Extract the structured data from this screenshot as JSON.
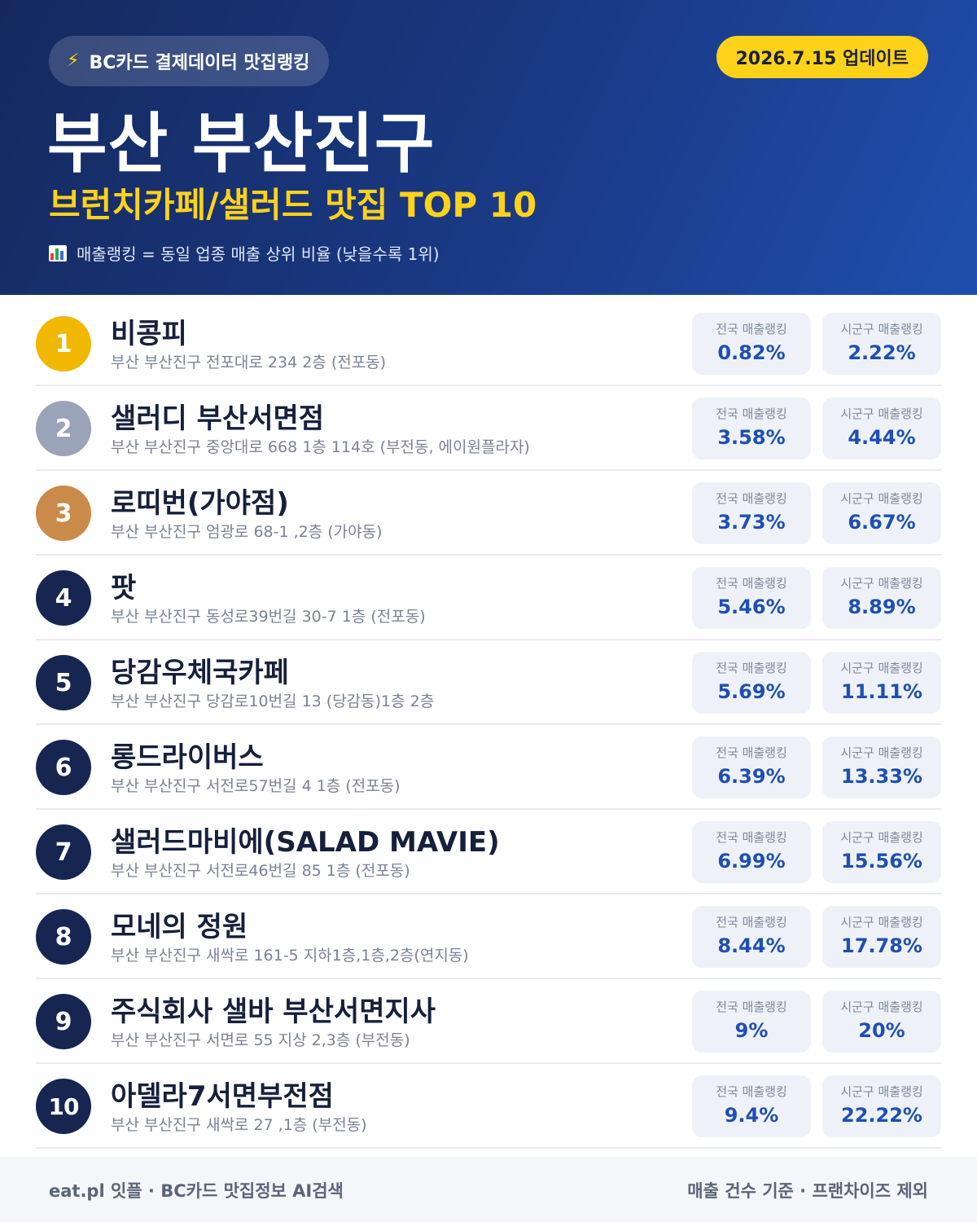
{
  "header": {
    "source_badge": "BC카드 결제데이터 맛집랭킹",
    "update_badge": "2026.7.15 업데이트",
    "title": "부산 부산진구",
    "subtitle": "브런치카페/샐러드 맛집 TOP 10",
    "note": "매출랭킹 = 동일 업종 매출 상위 비율 (낮을수록 1위)"
  },
  "labels": {
    "national": "전국 매출랭킹",
    "district": "시군구 매출랭킹"
  },
  "colors": {
    "gold": "#f0b800",
    "silver": "#9aa3b8",
    "bronze": "#c98a4a",
    "navy": "#172551",
    "accent_yellow": "#ffd21a",
    "value_blue": "#1f4fb4"
  },
  "restaurants": [
    {
      "rank": "1",
      "name": "비콩피",
      "address": "부산 부산진구 전포대로 234 2층 (전포동)",
      "national": "0.82%",
      "district": "2.22%"
    },
    {
      "rank": "2",
      "name": "샐러디 부산서면점",
      "address": "부산 부산진구 중앙대로 668 1층 114호 (부전동, 에이원플라자)",
      "national": "3.58%",
      "district": "4.44%"
    },
    {
      "rank": "3",
      "name": "로띠번(가야점)",
      "address": "부산 부산진구 엄광로 68-1 ,2층 (가야동)",
      "national": "3.73%",
      "district": "6.67%"
    },
    {
      "rank": "4",
      "name": "팟",
      "address": "부산 부산진구 동성로39번길 30-7 1층 (전포동)",
      "national": "5.46%",
      "district": "8.89%"
    },
    {
      "rank": "5",
      "name": "당감우체국카페",
      "address": "부산 부산진구 당감로10번길 13 (당감동)1층 2층",
      "national": "5.69%",
      "district": "11.11%"
    },
    {
      "rank": "6",
      "name": "롱드라이버스",
      "address": "부산 부산진구 서전로57번길 4 1층 (전포동)",
      "national": "6.39%",
      "district": "13.33%"
    },
    {
      "rank": "7",
      "name": "샐러드마비에(SALAD MAVIE)",
      "address": "부산 부산진구 서전로46번길 85 1층 (전포동)",
      "national": "6.99%",
      "district": "15.56%"
    },
    {
      "rank": "8",
      "name": "모네의 정원",
      "address": "부산 부산진구 새싹로 161-5 지하1층,1층,2층(연지동)",
      "national": "8.44%",
      "district": "17.78%"
    },
    {
      "rank": "9",
      "name": "주식회사 샐바 부산서면지사",
      "address": "부산 부산진구 서면로 55 지상 2,3층 (부전동)",
      "national": "9%",
      "district": "20%"
    },
    {
      "rank": "10",
      "name": "아델라7서면부전점",
      "address": "부산 부산진구 새싹로 27 ,1층 (부전동)",
      "national": "9.4%",
      "district": "22.22%"
    }
  ],
  "footer": {
    "left": "eat.pl 잇플 · BC카드 맛집정보 AI검색",
    "right": "매출 건수 기준 · 프랜차이즈 제외"
  }
}
